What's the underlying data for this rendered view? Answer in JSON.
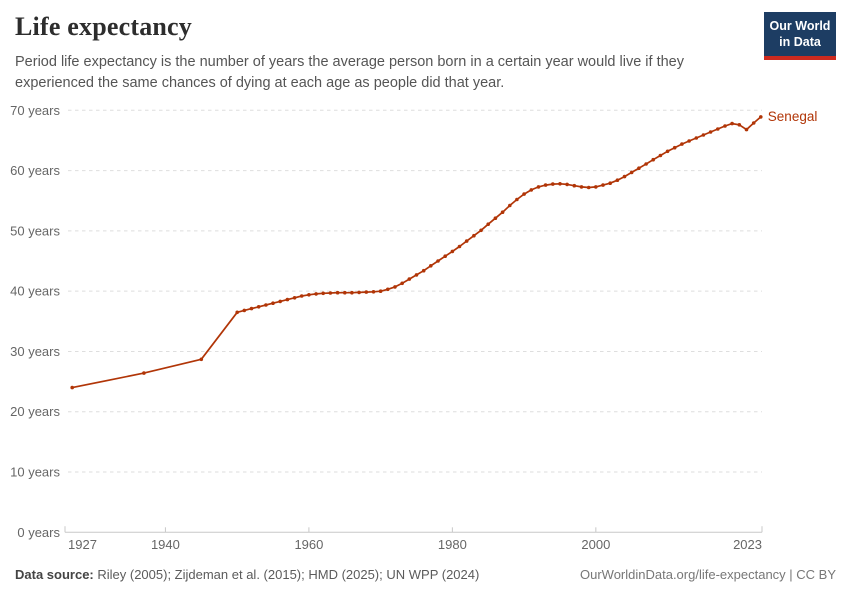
{
  "header": {
    "title": "Life expectancy",
    "subtitle": "Period life expectancy is the number of years the average person born in a certain year would live if they experienced the same chances of dying at each age as people did that year.",
    "logo": {
      "line1": "Our World",
      "line2": "in Data",
      "bg_color": "#1d3d63",
      "stripe_color": "#cc2a1f"
    }
  },
  "footer": {
    "source_label": "Data source:",
    "source_text": " Riley (2005); Zijdeman et al. (2015); HMD (2025); UN WPP (2024)",
    "link_text": "OurWorldinData.org/life-expectancy | CC BY"
  },
  "chart_data": {
    "type": "line",
    "title": "Life expectancy",
    "unit": "years",
    "entity": "Senegal",
    "end_label": "Senegal",
    "grid": "horizontal dashed",
    "legend_position": "end-of-line label",
    "xlim": [
      1926,
      2024
    ],
    "ylim": [
      0,
      70
    ],
    "x_ticks": [
      1927,
      1940,
      1960,
      1980,
      2000,
      2023
    ],
    "y_ticks": [
      0,
      10,
      20,
      30,
      40,
      50,
      60,
      70
    ],
    "y_tick_suffix": " years",
    "series": [
      {
        "name": "Senegal",
        "color": "#b13507",
        "points": [
          [
            1927,
            24.0
          ],
          [
            1937,
            26.4
          ],
          [
            1945,
            28.7
          ],
          [
            1950,
            36.5
          ],
          [
            1951,
            36.8
          ],
          [
            1952,
            37.1
          ],
          [
            1953,
            37.4
          ],
          [
            1954,
            37.7
          ],
          [
            1955,
            38.0
          ],
          [
            1956,
            38.3
          ],
          [
            1957,
            38.6
          ],
          [
            1958,
            38.9
          ],
          [
            1959,
            39.2
          ],
          [
            1960,
            39.4
          ],
          [
            1961,
            39.55
          ],
          [
            1962,
            39.65
          ],
          [
            1963,
            39.7
          ],
          [
            1964,
            39.75
          ],
          [
            1965,
            39.75
          ],
          [
            1966,
            39.75
          ],
          [
            1967,
            39.8
          ],
          [
            1968,
            39.85
          ],
          [
            1969,
            39.9
          ],
          [
            1970,
            40.0
          ],
          [
            1971,
            40.3
          ],
          [
            1972,
            40.7
          ],
          [
            1973,
            41.3
          ],
          [
            1974,
            42.0
          ],
          [
            1975,
            42.7
          ],
          [
            1976,
            43.4
          ],
          [
            1977,
            44.2
          ],
          [
            1978,
            45.0
          ],
          [
            1979,
            45.8
          ],
          [
            1980,
            46.6
          ],
          [
            1981,
            47.4
          ],
          [
            1982,
            48.3
          ],
          [
            1983,
            49.2
          ],
          [
            1984,
            50.1
          ],
          [
            1985,
            51.1
          ],
          [
            1986,
            52.1
          ],
          [
            1987,
            53.1
          ],
          [
            1988,
            54.2
          ],
          [
            1989,
            55.2
          ],
          [
            1990,
            56.1
          ],
          [
            1991,
            56.8
          ],
          [
            1992,
            57.3
          ],
          [
            1993,
            57.6
          ],
          [
            1994,
            57.75
          ],
          [
            1995,
            57.8
          ],
          [
            1996,
            57.7
          ],
          [
            1997,
            57.5
          ],
          [
            1998,
            57.3
          ],
          [
            1999,
            57.2
          ],
          [
            2000,
            57.3
          ],
          [
            2001,
            57.6
          ],
          [
            2002,
            57.9
          ],
          [
            2003,
            58.4
          ],
          [
            2004,
            59.0
          ],
          [
            2005,
            59.7
          ],
          [
            2006,
            60.4
          ],
          [
            2007,
            61.1
          ],
          [
            2008,
            61.8
          ],
          [
            2009,
            62.5
          ],
          [
            2010,
            63.2
          ],
          [
            2011,
            63.8
          ],
          [
            2012,
            64.4
          ],
          [
            2013,
            64.9
          ],
          [
            2014,
            65.4
          ],
          [
            2015,
            65.9
          ],
          [
            2016,
            66.4
          ],
          [
            2017,
            66.9
          ],
          [
            2018,
            67.4
          ],
          [
            2019,
            67.8
          ],
          [
            2020,
            67.6
          ],
          [
            2021,
            66.8
          ],
          [
            2022,
            67.9
          ],
          [
            2023,
            68.9
          ]
        ]
      }
    ]
  }
}
